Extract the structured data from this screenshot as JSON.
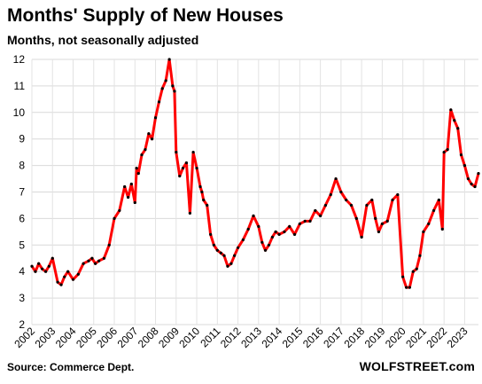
{
  "chart_data": {
    "type": "line",
    "title": "Months' Supply of New Houses",
    "subtitle": "Months, not seasonally adjusted",
    "source": "Source: Commerce Dept.",
    "brand": "WOLFSTREET.com",
    "ylim": [
      2,
      12
    ],
    "xlim": [
      2002.0,
      2023.67
    ],
    "y_ticks": [
      "2",
      "3",
      "4",
      "5",
      "6",
      "7",
      "8",
      "9",
      "10",
      "11",
      "12"
    ],
    "x_ticks": [
      "2002",
      "2003",
      "2004",
      "2005",
      "2006",
      "2007",
      "2008",
      "2009",
      "2010",
      "2011",
      "2012",
      "2013",
      "2014",
      "2015",
      "2016",
      "2017",
      "2018",
      "2019",
      "2020",
      "2021",
      "2022",
      "2023"
    ],
    "grid": true,
    "legend": "none",
    "line_color": "#ff0000",
    "marker_color": "#000000",
    "series": [
      {
        "x": [
          2002.0,
          2002.17,
          2002.33,
          2002.5,
          2002.67,
          2002.83,
          2003.0,
          2003.25,
          2003.42,
          2003.58,
          2003.75,
          2004.0,
          2004.25,
          2004.5,
          2004.75,
          2004.92,
          2005.08,
          2005.25,
          2005.5,
          2005.75,
          2006.0,
          2006.25,
          2006.5,
          2006.67,
          2006.83,
          2007.0,
          2007.08,
          2007.17,
          2007.33,
          2007.5,
          2007.67,
          2007.83,
          2008.0,
          2008.17,
          2008.33,
          2008.5,
          2008.67,
          2008.83,
          2008.92,
          2009.0,
          2009.17,
          2009.33,
          2009.5,
          2009.67,
          2009.83,
          2010.0,
          2010.17,
          2010.25,
          2010.33,
          2010.5,
          2010.67,
          2010.83,
          2011.0,
          2011.17,
          2011.33,
          2011.5,
          2011.67,
          2011.83,
          2012.0,
          2012.25,
          2012.5,
          2012.75,
          2013.0,
          2013.17,
          2013.33,
          2013.5,
          2013.67,
          2013.83,
          2014.0,
          2014.25,
          2014.5,
          2014.75,
          2015.0,
          2015.25,
          2015.5,
          2015.75,
          2016.0,
          2016.25,
          2016.5,
          2016.75,
          2017.0,
          2017.25,
          2017.5,
          2017.75,
          2018.0,
          2018.25,
          2018.5,
          2018.67,
          2018.83,
          2019.0,
          2019.25,
          2019.5,
          2019.75,
          2020.0,
          2020.17,
          2020.33,
          2020.5,
          2020.67,
          2020.83,
          2021.0,
          2021.25,
          2021.5,
          2021.75,
          2021.92,
          2022.0,
          2022.17,
          2022.33,
          2022.5,
          2022.67,
          2022.83,
          2023.0,
          2023.17,
          2023.33,
          2023.5,
          2023.67
        ],
        "values": [
          4.2,
          4.0,
          4.3,
          4.1,
          4.0,
          4.2,
          4.5,
          3.6,
          3.5,
          3.8,
          4.0,
          3.7,
          3.9,
          4.3,
          4.4,
          4.5,
          4.3,
          4.4,
          4.5,
          5.0,
          6.0,
          6.3,
          7.2,
          6.8,
          7.3,
          6.6,
          7.9,
          7.7,
          8.4,
          8.6,
          9.2,
          9.0,
          9.8,
          10.4,
          10.9,
          11.2,
          12.0,
          11.0,
          10.8,
          8.5,
          7.6,
          7.9,
          8.1,
          6.2,
          8.5,
          7.9,
          7.2,
          7.0,
          6.7,
          6.5,
          5.4,
          5.0,
          4.8,
          4.7,
          4.6,
          4.2,
          4.3,
          4.6,
          4.9,
          5.2,
          5.6,
          6.1,
          5.7,
          5.1,
          4.8,
          5.0,
          5.3,
          5.5,
          5.4,
          5.5,
          5.7,
          5.4,
          5.8,
          5.9,
          5.9,
          6.3,
          6.1,
          6.5,
          6.9,
          7.5,
          7.0,
          6.7,
          6.5,
          6.0,
          5.3,
          6.5,
          6.7,
          6.0,
          5.5,
          5.8,
          5.9,
          6.7,
          6.9,
          3.8,
          3.4,
          3.4,
          4.0,
          4.1,
          4.6,
          5.5,
          5.8,
          6.3,
          6.7,
          5.6,
          8.5,
          8.6,
          10.1,
          9.7,
          9.4,
          8.4,
          8.0,
          7.5,
          7.3,
          7.2,
          7.7
        ]
      }
    ]
  }
}
